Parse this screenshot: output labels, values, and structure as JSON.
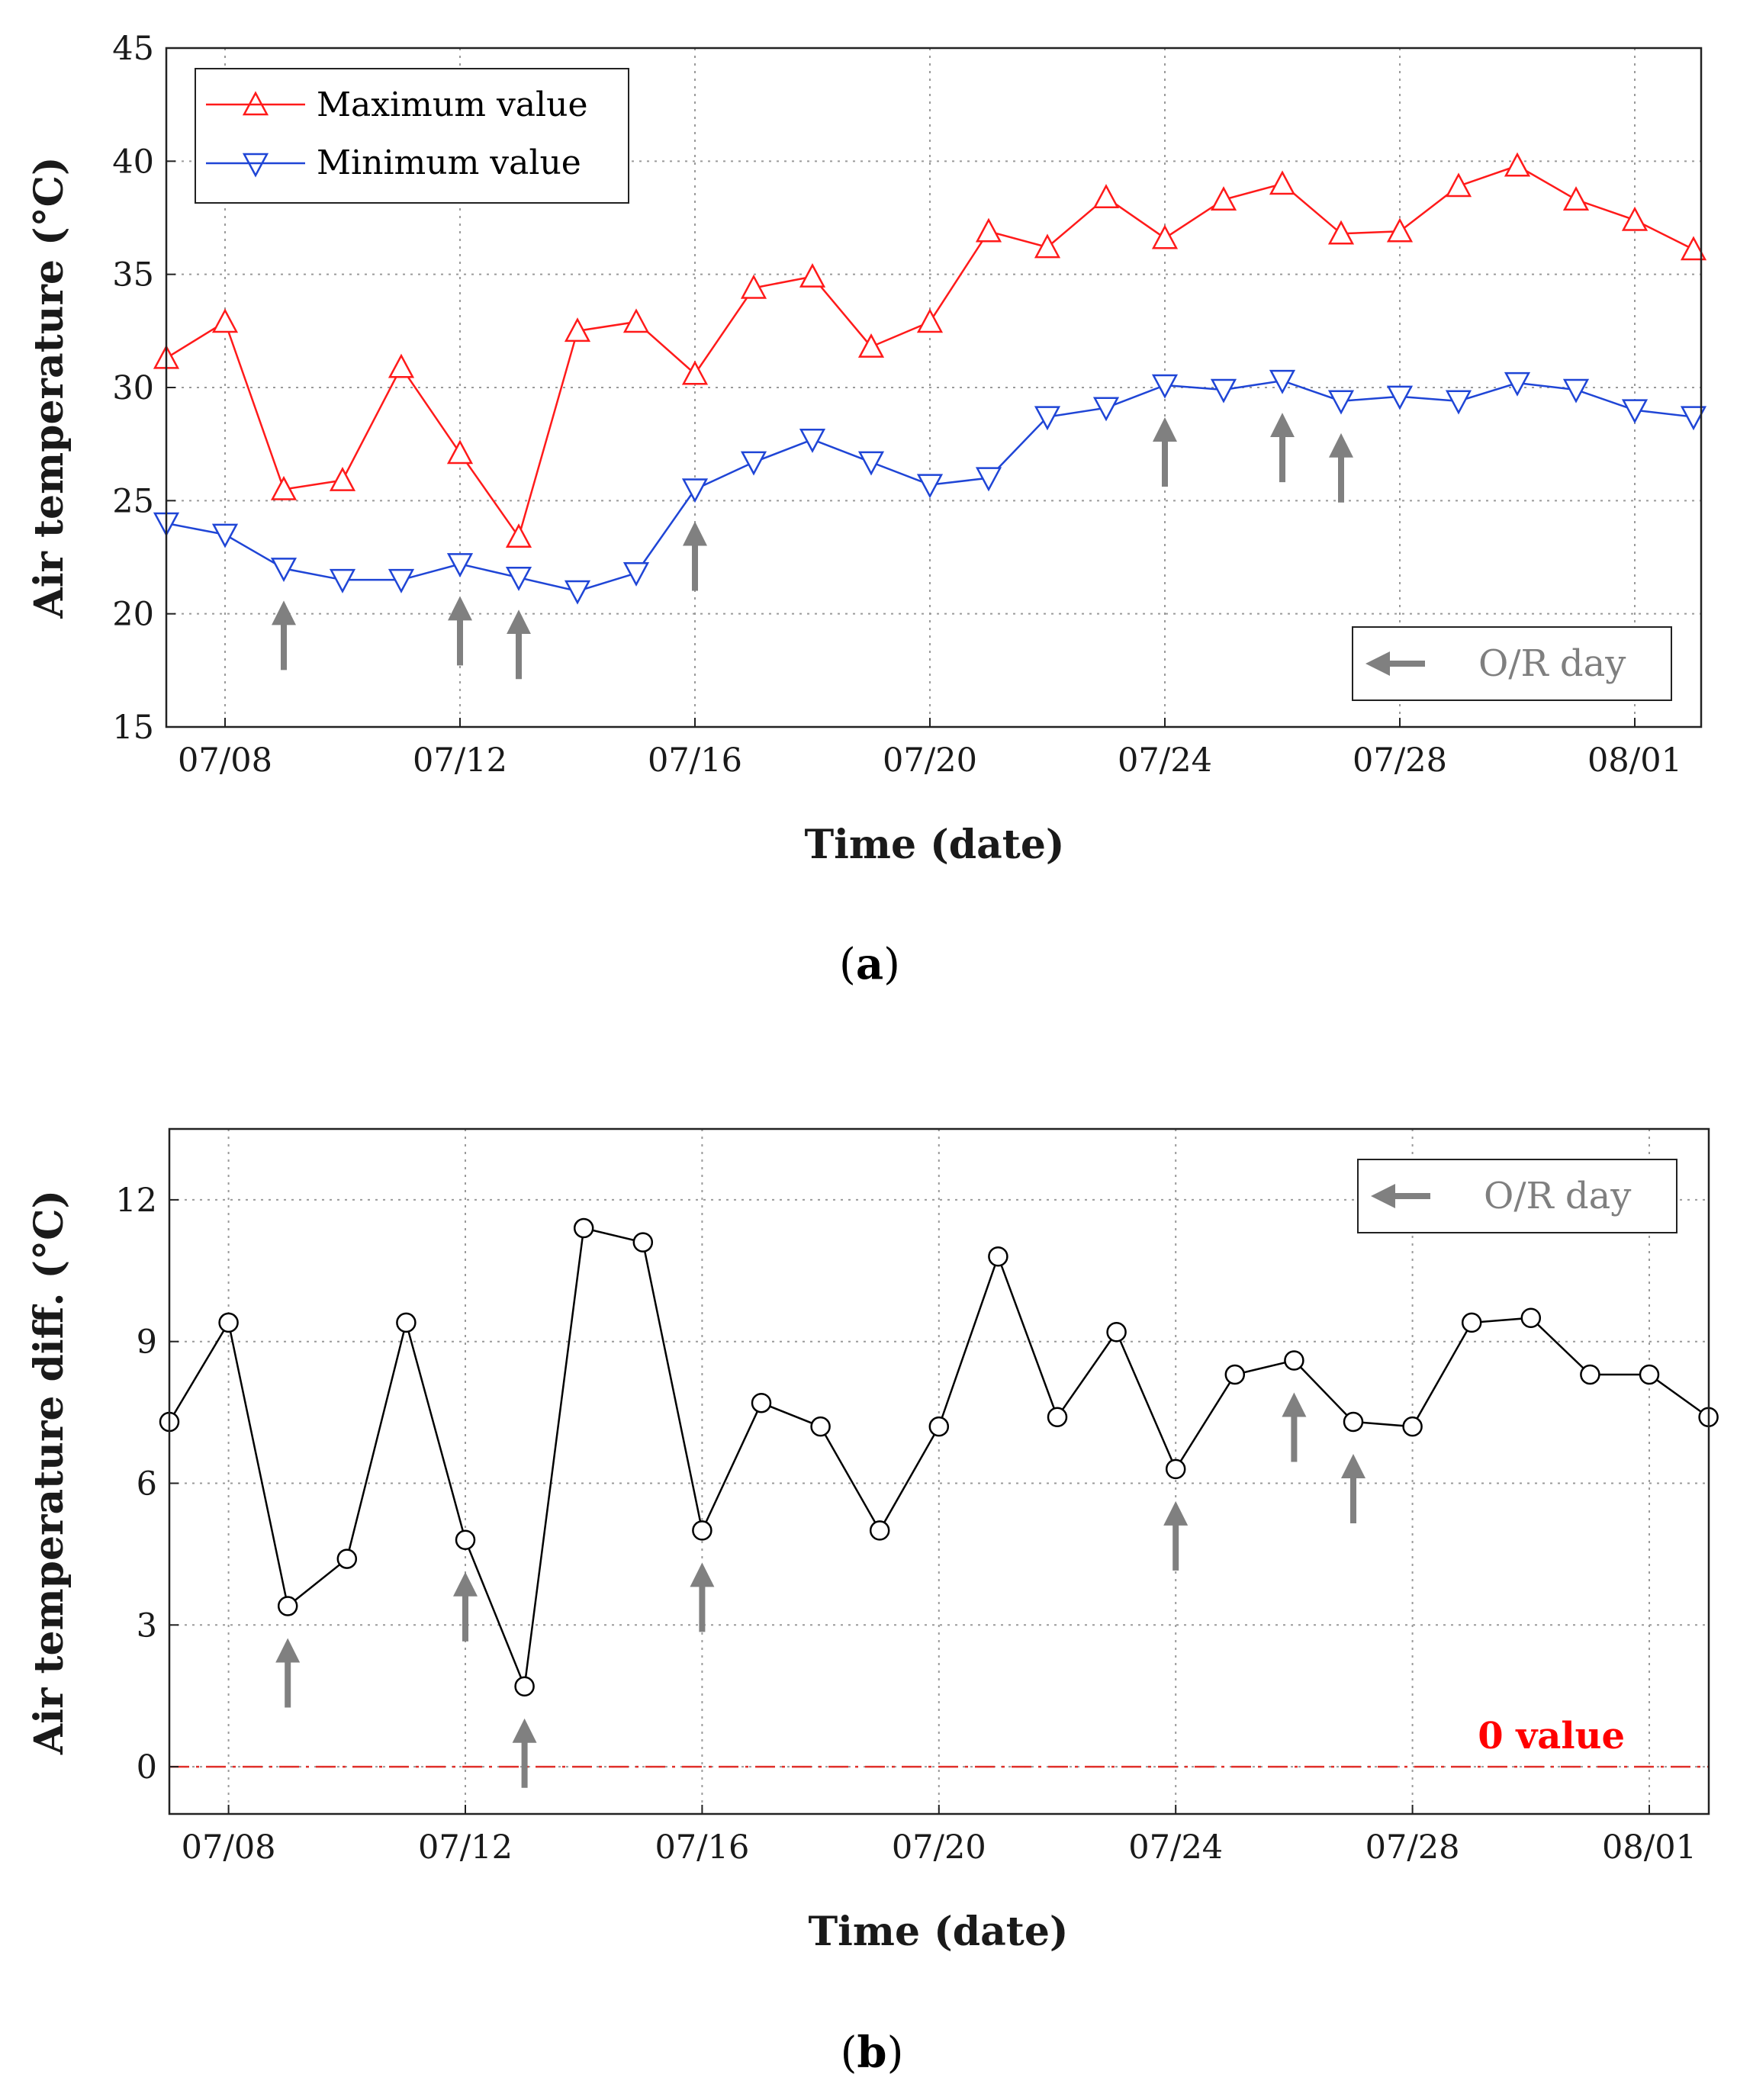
{
  "colors": {
    "max_series": "#ff1a1a",
    "min_series": "#1f45d6",
    "diff_series": "#000000",
    "arrow": "#808080",
    "zero_line": "#e0302b",
    "zero_label": "#ff0000",
    "grid": "#9a9a9a"
  },
  "chart_data": [
    {
      "panel_label": "a",
      "type": "line",
      "title": "",
      "xlabel": "Time (date)",
      "ylabel": "Air temperature (°C)",
      "x": [
        "07/07",
        "07/08",
        "07/09",
        "07/10",
        "07/11",
        "07/12",
        "07/13",
        "07/14",
        "07/15",
        "07/16",
        "07/17",
        "07/18",
        "07/19",
        "07/20",
        "07/21",
        "07/22",
        "07/23",
        "07/24",
        "07/25",
        "07/26",
        "07/27",
        "07/28",
        "07/29",
        "07/30",
        "07/31",
        "08/01",
        "08/02"
      ],
      "x_ticks": [
        "07/08",
        "07/12",
        "07/16",
        "07/20",
        "07/24",
        "07/28",
        "08/01"
      ],
      "ylim": [
        15,
        45
      ],
      "y_ticks": [
        15,
        20,
        25,
        30,
        35,
        40,
        45
      ],
      "grid": true,
      "legend_position": "top-left",
      "series": [
        {
          "name": "Maximum value",
          "marker": "triangle-up",
          "values": [
            31.3,
            32.9,
            25.5,
            25.9,
            30.9,
            27.1,
            23.4,
            32.5,
            32.9,
            30.6,
            34.4,
            34.9,
            31.8,
            32.9,
            36.9,
            36.2,
            38.4,
            36.6,
            38.3,
            39.0,
            36.8,
            36.9,
            38.9,
            39.8,
            38.3,
            37.4,
            36.1
          ]
        },
        {
          "name": "Minimum value",
          "marker": "triangle-down",
          "values": [
            24.0,
            23.5,
            22.0,
            21.5,
            21.5,
            22.2,
            21.6,
            21.0,
            21.8,
            25.5,
            26.7,
            27.7,
            26.7,
            25.7,
            26.0,
            28.7,
            29.1,
            30.1,
            29.9,
            30.3,
            29.4,
            29.6,
            29.4,
            30.2,
            29.9,
            29.0,
            28.7
          ]
        }
      ],
      "or_days": [
        "07/09",
        "07/12",
        "07/13",
        "07/16",
        "07/24",
        "07/26",
        "07/27"
      ],
      "or_day_label": "O/R day",
      "or_legend_position": "bottom-right"
    },
    {
      "panel_label": "b",
      "type": "line",
      "title": "",
      "xlabel": "Time (date)",
      "ylabel": "Air temperature diff. (°C)",
      "x": [
        "07/07",
        "07/08",
        "07/09",
        "07/10",
        "07/11",
        "07/12",
        "07/13",
        "07/14",
        "07/15",
        "07/16",
        "07/17",
        "07/18",
        "07/19",
        "07/20",
        "07/21",
        "07/22",
        "07/23",
        "07/24",
        "07/25",
        "07/26",
        "07/27",
        "07/28",
        "07/29",
        "07/30",
        "07/31",
        "08/01",
        "08/02"
      ],
      "x_ticks": [
        "07/08",
        "07/12",
        "07/16",
        "07/20",
        "07/24",
        "07/28",
        "08/01"
      ],
      "ylim": [
        -1,
        13.5
      ],
      "y_ticks": [
        0,
        3,
        6,
        9,
        12
      ],
      "grid": true,
      "series": [
        {
          "name": "Air temperature diff.",
          "marker": "circle",
          "values": [
            7.3,
            9.4,
            3.4,
            4.4,
            9.4,
            4.8,
            1.7,
            11.4,
            11.1,
            5.0,
            7.7,
            7.2,
            5.0,
            7.2,
            10.8,
            7.4,
            9.2,
            6.3,
            8.3,
            8.6,
            7.3,
            7.2,
            9.4,
            9.5,
            8.3,
            8.3,
            7.4
          ]
        }
      ],
      "reference_line": {
        "value": 0,
        "label": "0 value"
      },
      "or_days": [
        "07/09",
        "07/12",
        "07/13",
        "07/16",
        "07/24",
        "07/26",
        "07/27"
      ],
      "or_day_label": "O/R day",
      "or_legend_position": "top-right"
    }
  ]
}
